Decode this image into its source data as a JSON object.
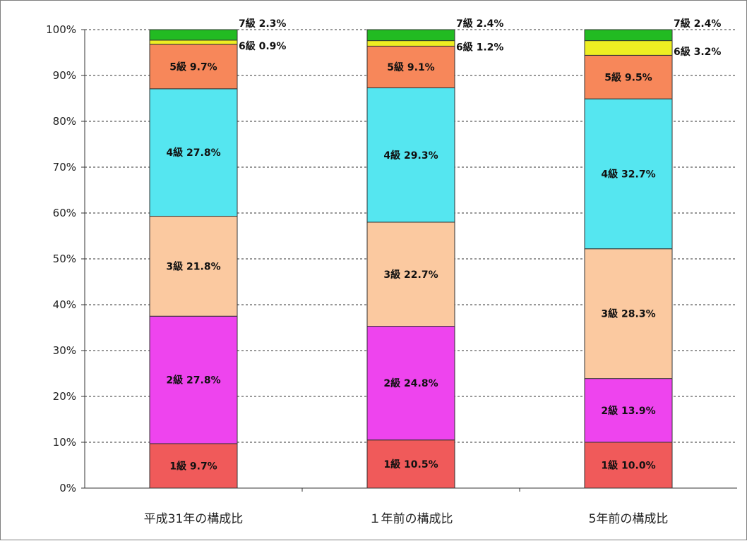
{
  "chart_data": {
    "type": "bar",
    "stacked": true,
    "title": "",
    "xlabel": "",
    "ylabel": "",
    "ylim": [
      0,
      100
    ],
    "yticks": [
      "0%",
      "10%",
      "20%",
      "30%",
      "40%",
      "50%",
      "60%",
      "70%",
      "80%",
      "90%",
      "100%"
    ],
    "grid": true,
    "legend": "none",
    "categories": [
      "平成31年の構成比",
      "１年前の構成比",
      "5年前の構成比"
    ],
    "series": [
      {
        "name": "1級",
        "color": "#f05a5a",
        "values": [
          9.7,
          10.5,
          10.0
        ],
        "labels": [
          "1級  9.7%",
          "1級  10.5%",
          "1級  10.0%"
        ]
      },
      {
        "name": "2級",
        "color": "#ee44ee",
        "values": [
          27.8,
          24.8,
          13.9
        ],
        "labels": [
          "2級  27.8%",
          "2級 24.8%",
          "2級  13.9%"
        ]
      },
      {
        "name": "3級",
        "color": "#fbc9a0",
        "values": [
          21.8,
          22.7,
          28.3
        ],
        "labels": [
          "3級 21.8%",
          "3級 22.7%",
          "3級  28.3%"
        ]
      },
      {
        "name": "4級",
        "color": "#55e6f0",
        "values": [
          27.8,
          29.3,
          32.7
        ],
        "labels": [
          "4級  27.8%",
          "4級  29.3%",
          "4級  32.7%"
        ]
      },
      {
        "name": "5級",
        "color": "#f7875a",
        "values": [
          9.7,
          9.1,
          9.5
        ],
        "labels": [
          "5級  9.7%",
          "5級  9.1%",
          "5級  9.5%"
        ]
      },
      {
        "name": "6級",
        "color": "#eeee22",
        "values": [
          0.9,
          1.2,
          3.2
        ],
        "labels": [
          "6級  0.9%",
          "6級  1.2%",
          "6級  3.2%"
        ]
      },
      {
        "name": "7級",
        "color": "#22bb22",
        "values": [
          2.3,
          2.4,
          2.4
        ],
        "labels": [
          "7級  2.3%",
          "7級  2.4%",
          "7級  2.4%"
        ]
      }
    ]
  }
}
